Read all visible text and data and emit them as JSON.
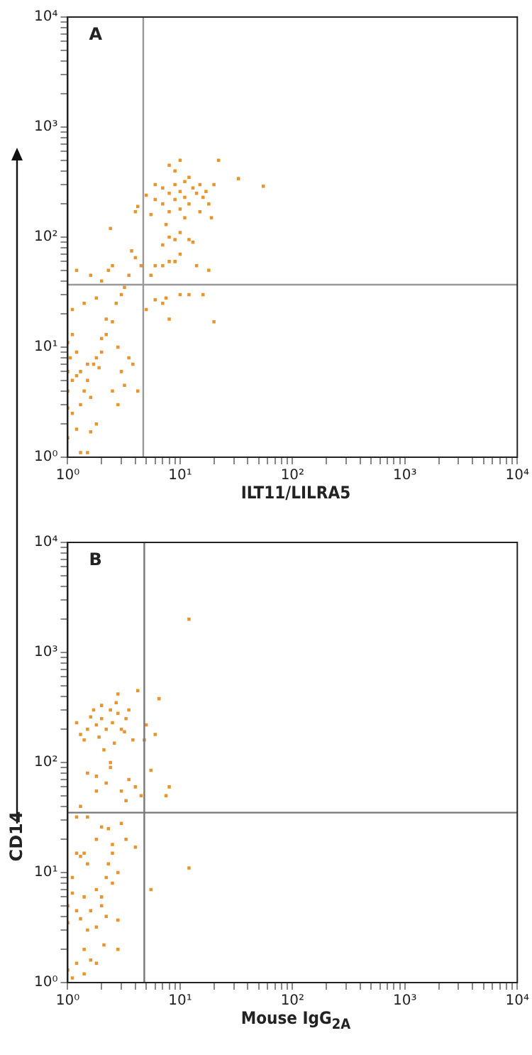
{
  "chart_data": [
    {
      "type": "scatter",
      "title": "A",
      "xlabel": "ILT11/LILRA5",
      "log": "xy",
      "grid": false,
      "legend": false,
      "marker": "square",
      "xlim": [
        1,
        10000
      ],
      "ylim": [
        1,
        10000
      ],
      "xticks": [
        {
          "value": 1,
          "label": "10⁰"
        },
        {
          "value": 2,
          "label": null
        },
        {
          "value": 3,
          "label": null
        },
        {
          "value": 4,
          "label": null
        },
        {
          "value": 5,
          "label": null
        },
        {
          "value": 6,
          "label": null
        },
        {
          "value": 7,
          "label": null
        },
        {
          "value": 8,
          "label": null
        },
        {
          "value": 9,
          "label": null
        },
        {
          "value": 10,
          "label": "10¹"
        },
        {
          "value": 20,
          "label": null
        },
        {
          "value": 30,
          "label": null
        },
        {
          "value": 40,
          "label": null
        },
        {
          "value": 50,
          "label": null
        },
        {
          "value": 60,
          "label": null
        },
        {
          "value": 70,
          "label": null
        },
        {
          "value": 80,
          "label": null
        },
        {
          "value": 90,
          "label": null
        },
        {
          "value": 100,
          "label": "10²"
        },
        {
          "value": 200,
          "label": null
        },
        {
          "value": 300,
          "label": null
        },
        {
          "value": 400,
          "label": null
        },
        {
          "value": 500,
          "label": null
        },
        {
          "value": 600,
          "label": null
        },
        {
          "value": 700,
          "label": null
        },
        {
          "value": 800,
          "label": null
        },
        {
          "value": 900,
          "label": null
        },
        {
          "value": 1000,
          "label": "10³"
        },
        {
          "value": 2000,
          "label": null
        },
        {
          "value": 3000,
          "label": null
        },
        {
          "value": 4000,
          "label": null
        },
        {
          "value": 5000,
          "label": null
        },
        {
          "value": 6000,
          "label": null
        },
        {
          "value": 7000,
          "label": null
        },
        {
          "value": 8000,
          "label": null
        },
        {
          "value": 9000,
          "label": null
        },
        {
          "value": 10000,
          "label": "10⁴"
        }
      ],
      "yticks": [
        {
          "value": 1,
          "label": "10⁰"
        },
        {
          "value": 2,
          "label": null
        },
        {
          "value": 3,
          "label": null
        },
        {
          "value": 4,
          "label": null
        },
        {
          "value": 5,
          "label": null
        },
        {
          "value": 6,
          "label": null
        },
        {
          "value": 7,
          "label": null
        },
        {
          "value": 8,
          "label": null
        },
        {
          "value": 9,
          "label": null
        },
        {
          "value": 10,
          "label": "10¹"
        },
        {
          "value": 20,
          "label": null
        },
        {
          "value": 30,
          "label": null
        },
        {
          "value": 40,
          "label": null
        },
        {
          "value": 50,
          "label": null
        },
        {
          "value": 60,
          "label": null
        },
        {
          "value": 70,
          "label": null
        },
        {
          "value": 80,
          "label": null
        },
        {
          "value": 90,
          "label": null
        },
        {
          "value": 100,
          "label": "10²"
        },
        {
          "value": 200,
          "label": null
        },
        {
          "value": 300,
          "label": null
        },
        {
          "value": 400,
          "label": null
        },
        {
          "value": 500,
          "label": null
        },
        {
          "value": 600,
          "label": null
        },
        {
          "value": 700,
          "label": null
        },
        {
          "value": 800,
          "label": null
        },
        {
          "value": 900,
          "label": null
        },
        {
          "value": 1000,
          "label": "10³"
        },
        {
          "value": 2000,
          "label": null
        },
        {
          "value": 3000,
          "label": null
        },
        {
          "value": 4000,
          "label": null
        },
        {
          "value": 5000,
          "label": null
        },
        {
          "value": 6000,
          "label": null
        },
        {
          "value": 7000,
          "label": null
        },
        {
          "value": 8000,
          "label": null
        },
        {
          "value": 9000,
          "label": null
        },
        {
          "value": 10000,
          "label": "10⁴"
        }
      ],
      "ref_lines": [
        {
          "axis": "x",
          "value": 4.7,
          "color": "#999999"
        },
        {
          "axis": "y",
          "value": 37,
          "color": "#999999"
        }
      ],
      "series": [
        {
          "color": "#e8952f",
          "x": [
            7,
            8,
            9,
            10,
            11,
            12,
            9,
            10,
            8,
            13,
            14,
            7,
            6,
            11,
            12,
            9,
            10,
            8,
            15,
            16,
            17,
            20,
            22,
            33,
            55,
            5.5,
            6,
            5,
            18,
            15,
            11,
            7.5,
            10,
            12,
            8,
            9,
            13,
            7,
            19,
            7,
            8,
            9,
            10,
            18,
            14,
            5.5,
            6,
            10,
            7,
            8,
            12,
            7.5,
            20,
            16,
            6,
            5,
            4.5,
            4,
            3.7,
            3.5,
            3.2,
            2.5,
            2.3,
            2,
            1.6,
            1.2,
            2.4,
            4.2,
            4,
            3,
            2.7,
            2.2,
            2.5,
            1.8,
            1.4,
            1.1,
            1.1,
            2,
            2.2,
            2.8,
            3.5,
            3.8,
            3,
            1.8,
            1.7,
            1.9,
            1.5,
            1.3,
            1.2,
            1.1,
            1,
            1.05,
            1,
            1.2,
            1.4,
            1.3,
            1.6,
            1.1,
            1.2,
            1.6,
            1,
            1.3,
            1.5,
            2.5,
            2.8,
            4.2,
            3.2,
            1.8,
            1,
            1,
            1.5,
            2
          ],
          "values": [
            200,
            250,
            220,
            260,
            230,
            200,
            300,
            180,
            170,
            280,
            250,
            280,
            220,
            320,
            350,
            400,
            500,
            450,
            300,
            230,
            260,
            300,
            500,
            340,
            290,
            160,
            300,
            240,
            200,
            170,
            150,
            130,
            110,
            95,
            100,
            95,
            90,
            85,
            150,
            55,
            60,
            60,
            70,
            50,
            55,
            45,
            55,
            30,
            25,
            18,
            30,
            28,
            17,
            30,
            27,
            22,
            55,
            65,
            75,
            45,
            35,
            55,
            50,
            40,
            45,
            50,
            120,
            190,
            170,
            30,
            25,
            18,
            17,
            28,
            25,
            22,
            13,
            12,
            13,
            10,
            8,
            7,
            6,
            8,
            7,
            6.5,
            5,
            6,
            5.5,
            5,
            4,
            8,
            11,
            9,
            4,
            3,
            3.5,
            2.5,
            1.8,
            1.7,
            1.5,
            1.1,
            1.1,
            4,
            3,
            4,
            4.5,
            2,
            2.8,
            6,
            7,
            9
          ]
        }
      ]
    },
    {
      "type": "scatter",
      "title": "B",
      "xlabel": "Mouse IgG$_{2A}$",
      "ylabel": "CD14",
      "log": "xy",
      "grid": false,
      "legend": false,
      "marker": "square",
      "xlim": [
        1,
        10000
      ],
      "ylim": [
        1,
        10000
      ],
      "xticks": [
        {
          "value": 1,
          "label": "10⁰"
        },
        {
          "value": 2,
          "label": null
        },
        {
          "value": 3,
          "label": null
        },
        {
          "value": 4,
          "label": null
        },
        {
          "value": 5,
          "label": null
        },
        {
          "value": 6,
          "label": null
        },
        {
          "value": 7,
          "label": null
        },
        {
          "value": 8,
          "label": null
        },
        {
          "value": 9,
          "label": null
        },
        {
          "value": 10,
          "label": "10¹"
        },
        {
          "value": 20,
          "label": null
        },
        {
          "value": 30,
          "label": null
        },
        {
          "value": 40,
          "label": null
        },
        {
          "value": 50,
          "label": null
        },
        {
          "value": 60,
          "label": null
        },
        {
          "value": 70,
          "label": null
        },
        {
          "value": 80,
          "label": null
        },
        {
          "value": 90,
          "label": null
        },
        {
          "value": 100,
          "label": "10²"
        },
        {
          "value": 200,
          "label": null
        },
        {
          "value": 300,
          "label": null
        },
        {
          "value": 400,
          "label": null
        },
        {
          "value": 500,
          "label": null
        },
        {
          "value": 600,
          "label": null
        },
        {
          "value": 700,
          "label": null
        },
        {
          "value": 800,
          "label": null
        },
        {
          "value": 900,
          "label": null
        },
        {
          "value": 1000,
          "label": "10³"
        },
        {
          "value": 2000,
          "label": null
        },
        {
          "value": 3000,
          "label": null
        },
        {
          "value": 4000,
          "label": null
        },
        {
          "value": 5000,
          "label": null
        },
        {
          "value": 6000,
          "label": null
        },
        {
          "value": 7000,
          "label": null
        },
        {
          "value": 8000,
          "label": null
        },
        {
          "value": 9000,
          "label": null
        },
        {
          "value": 10000,
          "label": "10⁴"
        }
      ],
      "yticks": [
        {
          "value": 1,
          "label": "10⁰"
        },
        {
          "value": 2,
          "label": null
        },
        {
          "value": 3,
          "label": null
        },
        {
          "value": 4,
          "label": null
        },
        {
          "value": 5,
          "label": null
        },
        {
          "value": 6,
          "label": null
        },
        {
          "value": 7,
          "label": null
        },
        {
          "value": 8,
          "label": null
        },
        {
          "value": 9,
          "label": null
        },
        {
          "value": 10,
          "label": "10¹"
        },
        {
          "value": 20,
          "label": null
        },
        {
          "value": 30,
          "label": null
        },
        {
          "value": 40,
          "label": null
        },
        {
          "value": 50,
          "label": null
        },
        {
          "value": 60,
          "label": null
        },
        {
          "value": 70,
          "label": null
        },
        {
          "value": 80,
          "label": null
        },
        {
          "value": 90,
          "label": null
        },
        {
          "value": 100,
          "label": "10²"
        },
        {
          "value": 200,
          "label": null
        },
        {
          "value": 300,
          "label": null
        },
        {
          "value": 400,
          "label": null
        },
        {
          "value": 500,
          "label": null
        },
        {
          "value": 600,
          "label": null
        },
        {
          "value": 700,
          "label": null
        },
        {
          "value": 800,
          "label": null
        },
        {
          "value": 900,
          "label": null
        },
        {
          "value": 1000,
          "label": "10³"
        },
        {
          "value": 2000,
          "label": null
        },
        {
          "value": 3000,
          "label": null
        },
        {
          "value": 4000,
          "label": null
        },
        {
          "value": 5000,
          "label": null
        },
        {
          "value": 6000,
          "label": null
        },
        {
          "value": 7000,
          "label": null
        },
        {
          "value": 8000,
          "label": null
        },
        {
          "value": 9000,
          "label": null
        },
        {
          "value": 10000,
          "label": "10⁴"
        }
      ],
      "ref_lines": [
        {
          "axis": "x",
          "value": 4.8,
          "color": "#777777"
        },
        {
          "axis": "y",
          "value": 35,
          "color": "#777777"
        }
      ],
      "series": [
        {
          "color": "#e8952f",
          "x": [
            1.5,
            1.8,
            2,
            2.2,
            2.5,
            1.3,
            1.6,
            2.8,
            3,
            3.3,
            1.2,
            2.4,
            2,
            2.7,
            1.7,
            3.5,
            4.2,
            2.8,
            3.8,
            1.9,
            2.6,
            1.4,
            2.1,
            3.2,
            2.4,
            2.4,
            1.8,
            2.2,
            1.8,
            3,
            3.5,
            1.5,
            1.3,
            3.3,
            4,
            4.5,
            5,
            4.8,
            6.5,
            6,
            5.5,
            7.5,
            8,
            12,
            12,
            5.5,
            1.2,
            1.5,
            2,
            2.3,
            3,
            3.3,
            2.5,
            1.8,
            4,
            1.2,
            1.4,
            1.5,
            2.3,
            2.8,
            2.2,
            2.5,
            1.8,
            2,
            1.4,
            1.1,
            1,
            1.2,
            1.3,
            1.5,
            1.8,
            2.2,
            2,
            1.6,
            1,
            2.8,
            1.2,
            1.6,
            1.8,
            2.8,
            1.4,
            1.1,
            1.4,
            2.1,
            1,
            1.1,
            1.3,
            2.5
          ],
          "values": [
            200,
            220,
            250,
            200,
            230,
            180,
            260,
            280,
            200,
            250,
            230,
            300,
            330,
            350,
            300,
            300,
            450,
            420,
            160,
            170,
            150,
            160,
            130,
            190,
            100,
            90,
            75,
            65,
            55,
            55,
            70,
            80,
            40,
            45,
            60,
            50,
            220,
            160,
            380,
            180,
            85,
            50,
            60,
            2000,
            11,
            7,
            32,
            32,
            26,
            25,
            28,
            20,
            18,
            20,
            17,
            15,
            15,
            12,
            12,
            10,
            9,
            8,
            7,
            6,
            6,
            6.5,
            5,
            4.5,
            3.8,
            3,
            3.2,
            4,
            5,
            4.5,
            3.5,
            3.7,
            1.5,
            1.6,
            1.5,
            2,
            1.2,
            1.1,
            2,
            2.2,
            1.3,
            9,
            14,
            15
          ]
        }
      ]
    }
  ]
}
